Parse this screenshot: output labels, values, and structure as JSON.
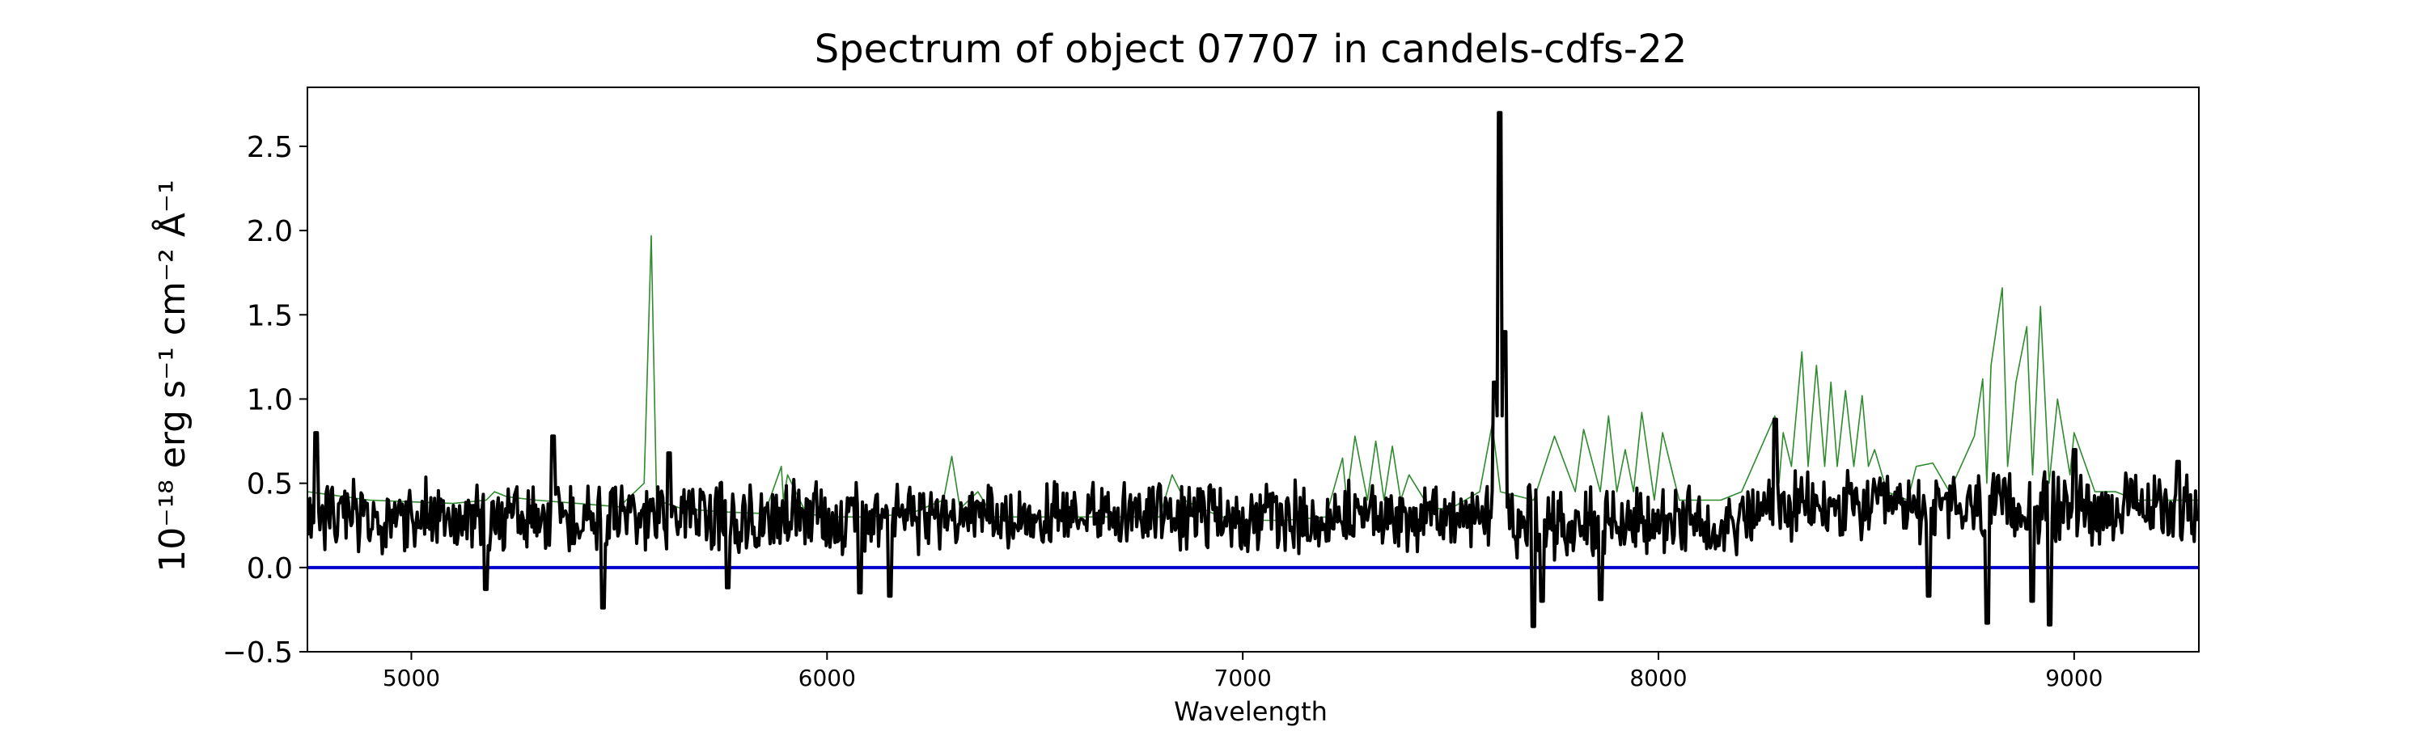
{
  "chart_data": {
    "type": "line",
    "title": "Spectrum of object 07707 in candels-cdfs-22",
    "xlabel": "Wavelength",
    "ylabel": "10⁻¹⁸ erg s⁻¹ cm⁻² Å⁻¹",
    "xlim": [
      4750,
      9300
    ],
    "ylim": [
      -0.5,
      2.85
    ],
    "xticks": [
      5000,
      6000,
      7000,
      8000,
      9000
    ],
    "yticks": [
      -0.5,
      0.0,
      0.5,
      1.0,
      1.5,
      2.0,
      2.5
    ],
    "ytick_labels": [
      "−0.5",
      "0.0",
      "0.5",
      "1.0",
      "1.5",
      "2.0",
      "2.5"
    ],
    "grid": false,
    "legend": "none",
    "zero_line": {
      "y": 0.0,
      "color": "#0000cc"
    },
    "series": [
      {
        "role": "sky",
        "color": "#2e8b2e",
        "x": [
          4750,
          4900,
          5100,
          5180,
          5200,
          5230,
          5300,
          5400,
          5500,
          5560,
          5577,
          5590,
          5650,
          5750,
          5850,
          5890,
          5895,
          5905,
          5950,
          6000,
          6100,
          6200,
          6280,
          6300,
          6320,
          6363,
          6400,
          6500,
          6600,
          6700,
          6800,
          6830,
          6860,
          6900,
          6950,
          7000,
          7100,
          7200,
          7240,
          7250,
          7270,
          7300,
          7320,
          7340,
          7360,
          7380,
          7400,
          7450,
          7500,
          7570,
          7600,
          7620,
          7700,
          7750,
          7800,
          7820,
          7860,
          7880,
          7900,
          7920,
          7940,
          7960,
          7990,
          8010,
          8050,
          8100,
          8150,
          8200,
          8280,
          8290,
          8300,
          8320,
          8345,
          8360,
          8380,
          8400,
          8415,
          8430,
          8450,
          8470,
          8490,
          8505,
          8520,
          8550,
          8600,
          8620,
          8660,
          8700,
          8760,
          8780,
          8790,
          8800,
          8827,
          8840,
          8860,
          8886,
          8900,
          8919,
          8940,
          8960,
          8990,
          9000,
          9050,
          9100,
          9150,
          9200,
          9250,
          9300
        ],
        "y": [
          0.45,
          0.4,
          0.38,
          0.4,
          0.45,
          0.42,
          0.4,
          0.38,
          0.36,
          0.5,
          1.97,
          0.4,
          0.35,
          0.33,
          0.32,
          0.6,
          0.4,
          0.55,
          0.32,
          0.3,
          0.3,
          0.32,
          0.4,
          0.66,
          0.35,
          0.45,
          0.3,
          0.3,
          0.3,
          0.3,
          0.3,
          0.55,
          0.4,
          0.35,
          0.3,
          0.28,
          0.28,
          0.3,
          0.65,
          0.4,
          0.78,
          0.4,
          0.75,
          0.4,
          0.72,
          0.4,
          0.55,
          0.35,
          0.35,
          0.45,
          0.85,
          0.45,
          0.4,
          0.78,
          0.45,
          0.82,
          0.45,
          0.9,
          0.45,
          0.7,
          0.45,
          0.92,
          0.4,
          0.8,
          0.4,
          0.4,
          0.4,
          0.45,
          0.9,
          0.5,
          0.8,
          0.6,
          1.28,
          0.6,
          1.2,
          0.6,
          1.1,
          0.6,
          1.05,
          0.6,
          1.02,
          0.6,
          0.7,
          0.45,
          0.4,
          0.6,
          0.62,
          0.45,
          0.78,
          1.12,
          0.5,
          1.2,
          1.66,
          0.6,
          1.1,
          1.43,
          0.55,
          1.55,
          0.5,
          1.0,
          0.55,
          0.8,
          0.45,
          0.45,
          0.4,
          0.4,
          0.4,
          0.4
        ]
      },
      {
        "role": "object",
        "color": "#000000",
        "x_range": [
          4750,
          9300
        ],
        "y_baseline": 0.3,
        "noise_amplitude": 0.16,
        "features": [
          {
            "x": 7618,
            "y": 2.7
          },
          {
            "x": 7605,
            "y": 1.1
          },
          {
            "x": 7630,
            "y": 1.4
          },
          {
            "x": 4770,
            "y": 0.8
          },
          {
            "x": 5340,
            "y": 0.78
          },
          {
            "x": 5620,
            "y": 0.68
          },
          {
            "x": 8280,
            "y": 0.88
          },
          {
            "x": 9000,
            "y": 0.7
          },
          {
            "x": 9250,
            "y": 0.63
          },
          {
            "x": 5180,
            "y": -0.13
          },
          {
            "x": 5460,
            "y": -0.24
          },
          {
            "x": 5760,
            "y": -0.12
          },
          {
            "x": 6080,
            "y": -0.15
          },
          {
            "x": 6150,
            "y": -0.17
          },
          {
            "x": 7700,
            "y": -0.35
          },
          {
            "x": 7720,
            "y": -0.2
          },
          {
            "x": 7860,
            "y": -0.19
          },
          {
            "x": 8650,
            "y": -0.17
          },
          {
            "x": 8790,
            "y": -0.33
          },
          {
            "x": 8940,
            "y": -0.34
          },
          {
            "x": 8900,
            "y": -0.2
          }
        ]
      }
    ]
  }
}
